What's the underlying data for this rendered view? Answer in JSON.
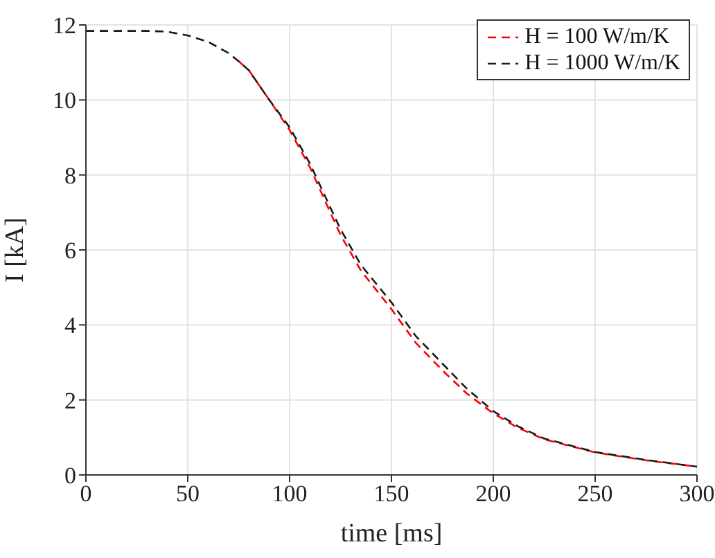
{
  "chart_data": {
    "type": "line",
    "xlabel": "time [ms]",
    "ylabel": "I [kA]",
    "x": [
      0,
      10,
      20,
      30,
      40,
      50,
      60,
      70,
      75,
      80,
      90,
      100,
      110,
      125,
      135,
      150,
      162,
      175,
      187,
      200,
      212,
      225,
      250,
      275,
      300
    ],
    "series": [
      {
        "name": "H = 100 W/m/K",
        "color": "#ff0000",
        "values": [
          null,
          null,
          null,
          null,
          null,
          null,
          null,
          null,
          11.03,
          10.79,
          10.0,
          9.2,
          8.2,
          6.4,
          5.45,
          4.42,
          3.52,
          2.79,
          2.17,
          1.64,
          1.26,
          0.95,
          0.6,
          0.39,
          0.22
        ]
      },
      {
        "name": "H = 1000 W/m/K",
        "color": "#1a1a1a",
        "values": [
          11.84,
          11.84,
          11.84,
          11.84,
          11.82,
          11.72,
          11.55,
          11.25,
          11.03,
          10.79,
          10.0,
          9.27,
          8.3,
          6.55,
          5.6,
          4.6,
          3.7,
          2.97,
          2.3,
          1.7,
          1.3,
          0.97,
          0.61,
          0.4,
          0.22
        ]
      }
    ],
    "xlim": [
      0,
      300
    ],
    "xticks": [
      0,
      50,
      100,
      150,
      200,
      250,
      300
    ],
    "ylim": [
      0,
      12
    ],
    "yticks": [
      0,
      2,
      4,
      6,
      8,
      10,
      12
    ],
    "grid": true,
    "legend": "top right",
    "line_style": "dashed",
    "marker": "none"
  }
}
